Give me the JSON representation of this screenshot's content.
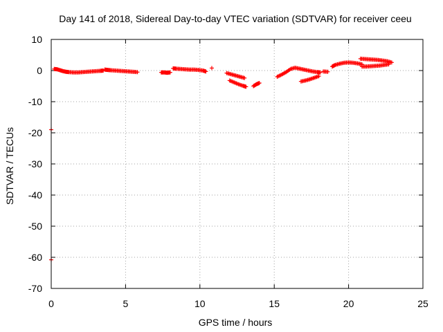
{
  "chart_data": {
    "type": "scatter",
    "title": "Day 141 of 2018, Sidereal Day-to-day VTEC variation (SDTVAR) for receiver ceeu",
    "xlabel": "GPS time / hours",
    "ylabel": "SDTVAR / TECUs",
    "xlim": [
      0,
      25
    ],
    "ylim": [
      -70,
      10
    ],
    "xticks": [
      0,
      5,
      10,
      15,
      20,
      25
    ],
    "yticks": [
      10,
      0,
      -10,
      -20,
      -30,
      -40,
      -50,
      -60,
      -70
    ],
    "grid": true,
    "marker": "+",
    "color": "#ff0000",
    "series": [
      {
        "name": "SDTVAR",
        "segments": [
          {
            "x": [
              0.2,
              0.4,
              0.6,
              0.8,
              1.0,
              1.2,
              1.5,
              1.8,
              2.1,
              2.4,
              2.7,
              3.0,
              3.3,
              3.5
            ],
            "y": [
              0.5,
              0.4,
              0.1,
              -0.2,
              -0.4,
              -0.5,
              -0.6,
              -0.6,
              -0.5,
              -0.4,
              -0.3,
              -0.2,
              -0.1,
              0.0
            ]
          },
          {
            "x": [
              3.6,
              3.8,
              4.0,
              4.3,
              4.6,
              4.9,
              5.2,
              5.5,
              5.8
            ],
            "y": [
              0.3,
              0.2,
              0.1,
              0.0,
              -0.1,
              -0.2,
              -0.3,
              -0.4,
              -0.5
            ]
          },
          {
            "x": [
              7.4,
              7.6,
              7.8,
              8.0
            ],
            "y": [
              -0.6,
              -0.6,
              -0.7,
              -0.6
            ]
          },
          {
            "x": [
              8.2,
              8.4,
              8.7,
              9.0,
              9.3,
              9.6,
              9.9,
              10.2,
              10.4
            ],
            "y": [
              0.7,
              0.6,
              0.5,
              0.4,
              0.3,
              0.3,
              0.2,
              0.0,
              -0.3
            ]
          },
          {
            "x": [
              10.8
            ],
            "y": [
              0.8
            ]
          },
          {
            "x": [
              11.8,
              12.1,
              12.4,
              12.7,
              13.0
            ],
            "y": [
              -0.8,
              -1.2,
              -1.6,
              -2.0,
              -2.4
            ]
          },
          {
            "x": [
              12.0,
              12.3,
              12.6,
              12.9,
              13.1
            ],
            "y": [
              -3.2,
              -3.8,
              -4.4,
              -4.9,
              -5.2
            ]
          },
          {
            "x": [
              13.6,
              13.8,
              14.0
            ],
            "y": [
              -5.0,
              -4.4,
              -4.0
            ]
          },
          {
            "x": [
              15.2,
              15.5,
              15.8,
              16.1,
              16.4,
              16.7,
              17.0,
              17.3,
              17.6,
              17.9,
              18.1
            ],
            "y": [
              -2.0,
              -1.3,
              -0.5,
              0.5,
              0.9,
              0.6,
              0.3,
              0.0,
              -0.3,
              -0.5,
              -0.6
            ]
          },
          {
            "x": [
              16.8,
              17.1,
              17.4,
              17.7,
              18.0
            ],
            "y": [
              -3.5,
              -3.2,
              -2.8,
              -2.3,
              -1.8
            ]
          },
          {
            "x": [
              18.3,
              18.6
            ],
            "y": [
              -0.3,
              -0.4
            ]
          },
          {
            "x": [
              18.9,
              19.1,
              19.4,
              19.7,
              20.0,
              20.3,
              20.6,
              20.9
            ],
            "y": [
              1.3,
              1.8,
              2.2,
              2.5,
              2.6,
              2.5,
              2.3,
              2.0
            ]
          },
          {
            "x": [
              20.8,
              21.1,
              21.4,
              21.7,
              22.0,
              22.3,
              22.6,
              22.9
            ],
            "y": [
              3.8,
              3.7,
              3.6,
              3.5,
              3.4,
              3.2,
              3.0,
              2.6
            ]
          },
          {
            "x": [
              20.9,
              21.2,
              21.5,
              21.8,
              22.1,
              22.4,
              22.7
            ],
            "y": [
              1.3,
              1.3,
              1.4,
              1.5,
              1.6,
              1.8,
              2.0
            ]
          },
          {
            "x": [
              0.0
            ],
            "y": [
              -19.0
            ]
          },
          {
            "x": [
              0.0
            ],
            "y": [
              -60.8
            ]
          }
        ]
      }
    ]
  }
}
